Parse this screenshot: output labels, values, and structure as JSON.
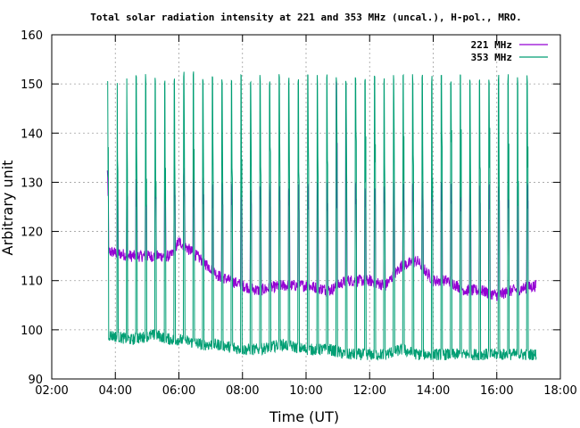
{
  "chart_data": {
    "type": "line",
    "title": "Total solar radiation intensity at 221 and 353 MHz (uncal.), H-pol., MRO.",
    "xlabel": "Time (UT)",
    "ylabel": "Arbitrary unit",
    "xlim": [
      "02:00",
      "18:00"
    ],
    "ylim": [
      90,
      160
    ],
    "x_ticks": [
      "02:00",
      "04:00",
      "06:00",
      "08:00",
      "10:00",
      "12:00",
      "14:00",
      "16:00",
      "18:00"
    ],
    "y_ticks": [
      "90",
      "100",
      "110",
      "120",
      "130",
      "140",
      "150",
      "160"
    ],
    "grid": true,
    "legend_position": "top-right",
    "series": [
      {
        "name": "221 MHz",
        "color": "#9400d3",
        "x": [
          "03:45",
          "04:30",
          "05:15",
          "05:45",
          "06:00",
          "06:45",
          "07:15",
          "08:00",
          "08:30",
          "09:15",
          "10:00",
          "10:45",
          "11:15",
          "12:00",
          "12:30",
          "13:00",
          "13:30",
          "14:00",
          "14:30",
          "15:00",
          "15:30",
          "16:00",
          "16:30",
          "17:15"
        ],
        "values": [
          116,
          115,
          115,
          115,
          118,
          114,
          111,
          109,
          108,
          109,
          109,
          108,
          110,
          110,
          109,
          113,
          114,
          110,
          110,
          108,
          108,
          107,
          108,
          109
        ],
        "peak_values": [
          133,
          132,
          130,
          131,
          133,
          131,
          130,
          130,
          130,
          130,
          130,
          130,
          151,
          130,
          130,
          130,
          130,
          130,
          130,
          130,
          130,
          130,
          130,
          130
        ]
      },
      {
        "name": "353 MHz",
        "color": "#009e73",
        "x": [
          "03:45",
          "04:30",
          "05:15",
          "05:45",
          "06:00",
          "06:45",
          "07:15",
          "08:00",
          "08:30",
          "09:15",
          "10:00",
          "10:45",
          "11:15",
          "12:00",
          "12:30",
          "13:00",
          "13:30",
          "14:00",
          "14:30",
          "15:00",
          "15:30",
          "16:00",
          "16:30",
          "17:15"
        ],
        "values": [
          99,
          98,
          99,
          98,
          98,
          97,
          97,
          96,
          96,
          97,
          96,
          96,
          95,
          95,
          95,
          96,
          95,
          95,
          95,
          95,
          95,
          95,
          95,
          95
        ],
        "peak_values": [
          152,
          152,
          152,
          152,
          153,
          152,
          152,
          152,
          152,
          152,
          152,
          152,
          152,
          152,
          152,
          152,
          152,
          152,
          152,
          152,
          152,
          152,
          152,
          152
        ]
      }
    ]
  }
}
